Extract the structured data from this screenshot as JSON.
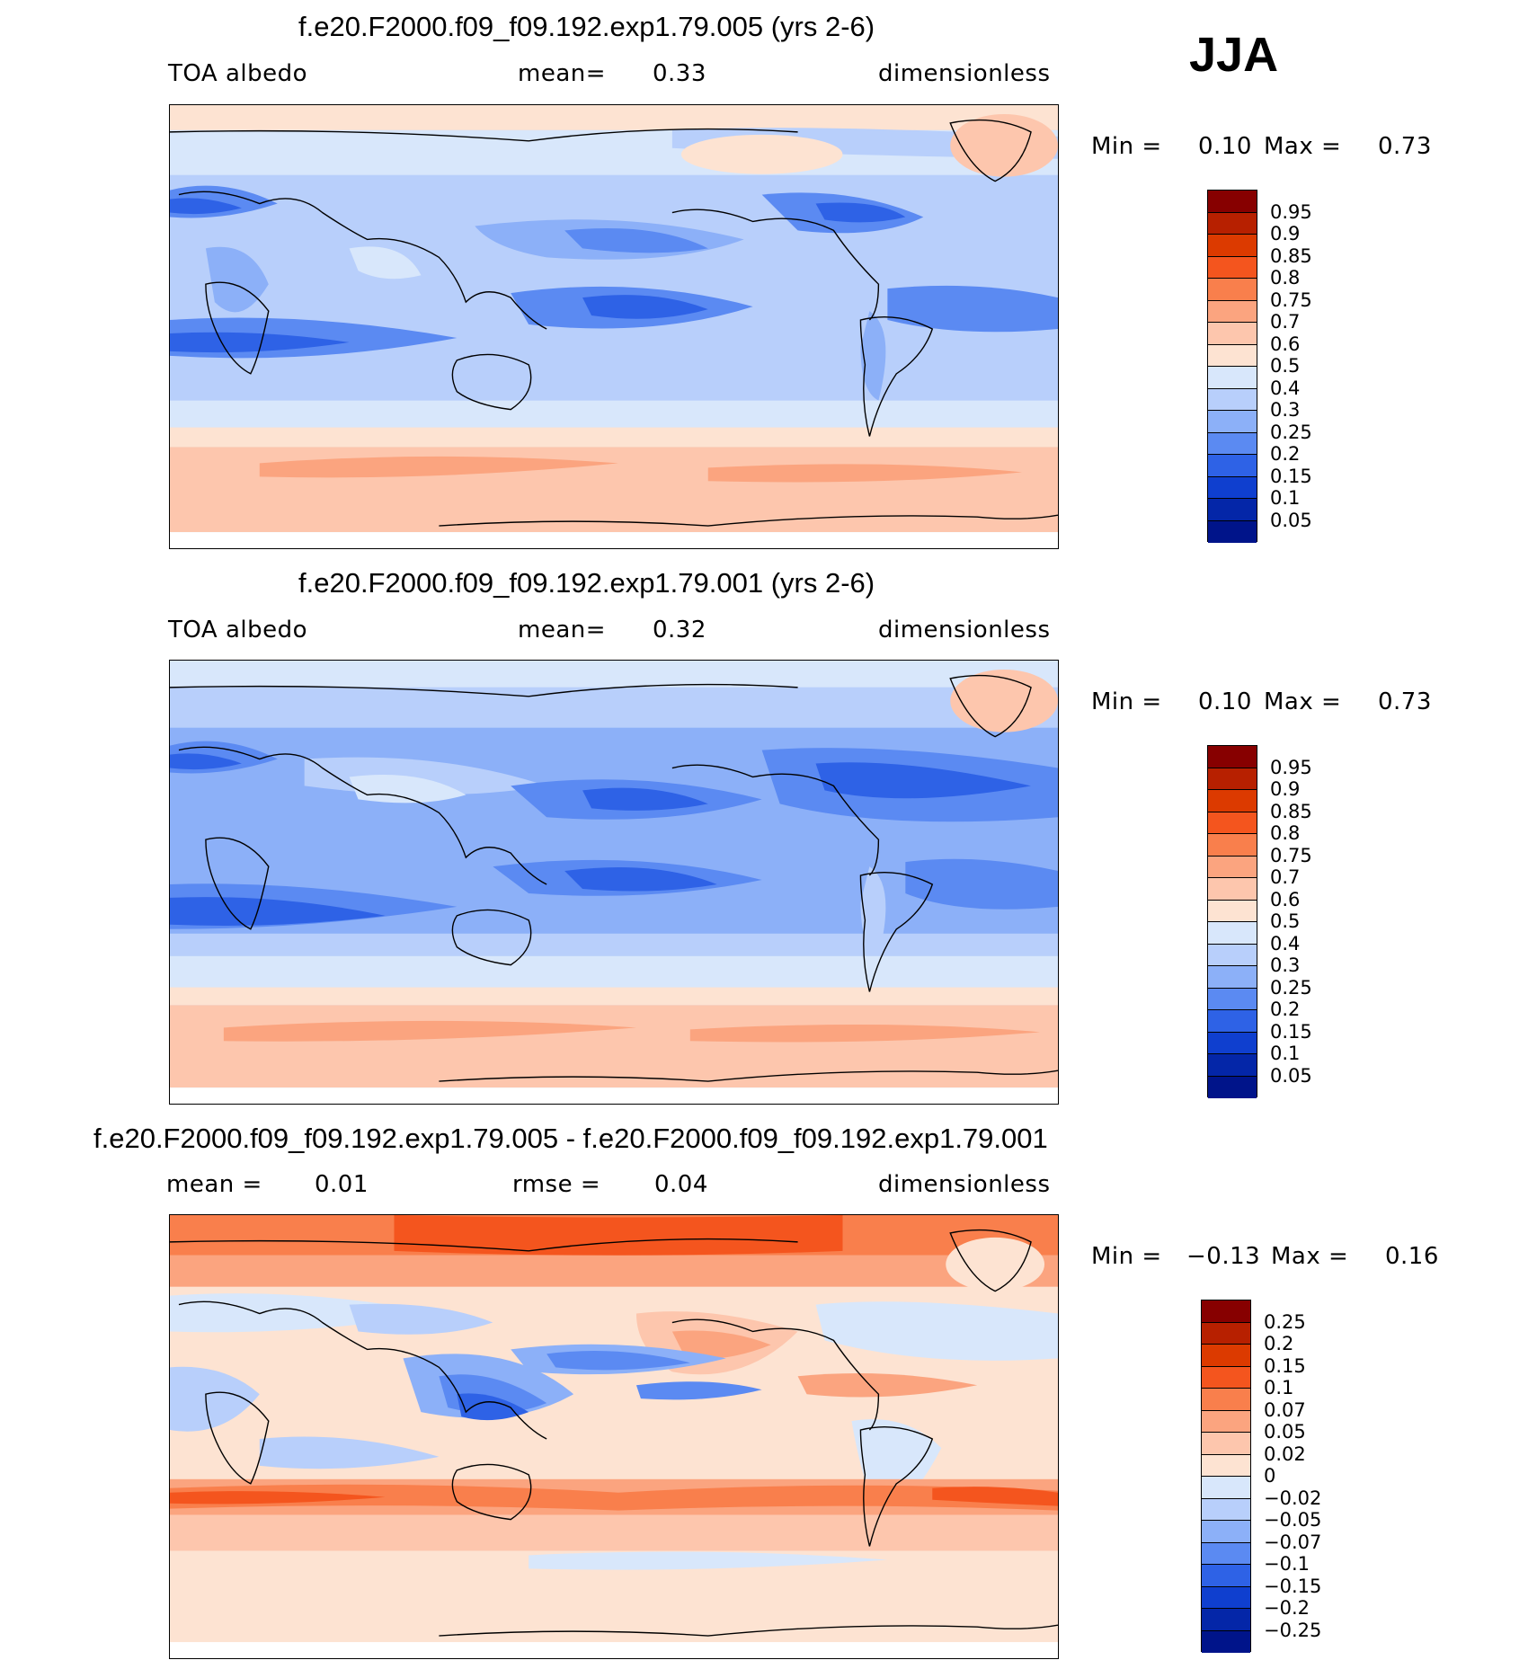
{
  "season": "JJA",
  "panels": [
    {
      "title": "f.e20.F2000.f09_f09.192.exp1.79.005 (yrs 2-6)",
      "left_label": "TOA albedo",
      "mid_label": "mean=",
      "mid_value": "0.33",
      "unit": "dimensionless",
      "min_label": "Min =",
      "min_value": "0.10",
      "max_label": "Max =",
      "max_value": "0.73",
      "colorbar_labels": [
        "0.95",
        "0.9",
        "0.85",
        "0.8",
        "0.75",
        "0.7",
        "0.6",
        "0.5",
        "0.4",
        "0.3",
        "0.25",
        "0.2",
        "0.15",
        "0.1",
        "0.05"
      ],
      "colorbar_colors": [
        "#870000",
        "#b72000",
        "#dc3a00",
        "#f4551e",
        "#f97f4c",
        "#fba47f",
        "#fdc6ad",
        "#fde3d2",
        "#d8e7fb",
        "#b8cffb",
        "#8cb0f8",
        "#5b8af2",
        "#2e62e6",
        "#0f3fcf",
        "#0426a8",
        "#00148a"
      ]
    },
    {
      "title": "f.e20.F2000.f09_f09.192.exp1.79.001 (yrs 2-6)",
      "left_label": "TOA albedo",
      "mid_label": "mean=",
      "mid_value": "0.32",
      "unit": "dimensionless",
      "min_label": "Min =",
      "min_value": "0.10",
      "max_label": "Max =",
      "max_value": "0.73",
      "colorbar_labels": [
        "0.95",
        "0.9",
        "0.85",
        "0.8",
        "0.75",
        "0.7",
        "0.6",
        "0.5",
        "0.4",
        "0.3",
        "0.25",
        "0.2",
        "0.15",
        "0.1",
        "0.05"
      ],
      "colorbar_colors": [
        "#870000",
        "#b72000",
        "#dc3a00",
        "#f4551e",
        "#f97f4c",
        "#fba47f",
        "#fdc6ad",
        "#fde3d2",
        "#d8e7fb",
        "#b8cffb",
        "#8cb0f8",
        "#5b8af2",
        "#2e62e6",
        "#0f3fcf",
        "#0426a8",
        "#00148a"
      ]
    },
    {
      "title": "f.e20.F2000.f09_f09.192.exp1.79.005 - f.e20.F2000.f09_f09.192.exp1.79.001",
      "left_label": "mean =",
      "left_value": "0.01",
      "mid_label": "rmse =",
      "mid_value": "0.04",
      "unit": "dimensionless",
      "min_label": "Min =",
      "min_value": "−0.13",
      "max_label": "Max =",
      "max_value": "0.16",
      "colorbar_labels": [
        "0.25",
        "0.2",
        "0.15",
        "0.1",
        "0.07",
        "0.05",
        "0.02",
        "0",
        "−0.02",
        "−0.05",
        "−0.07",
        "−0.1",
        "−0.15",
        "−0.2",
        "−0.25"
      ],
      "colorbar_colors": [
        "#870000",
        "#b72000",
        "#dc3a00",
        "#f4551e",
        "#f97f4c",
        "#fba47f",
        "#fdc6ad",
        "#fde3d2",
        "#d8e7fb",
        "#b8cffb",
        "#8cb0f8",
        "#5b8af2",
        "#2e62e6",
        "#0f3fcf",
        "#0426a8",
        "#00148a"
      ]
    }
  ]
}
